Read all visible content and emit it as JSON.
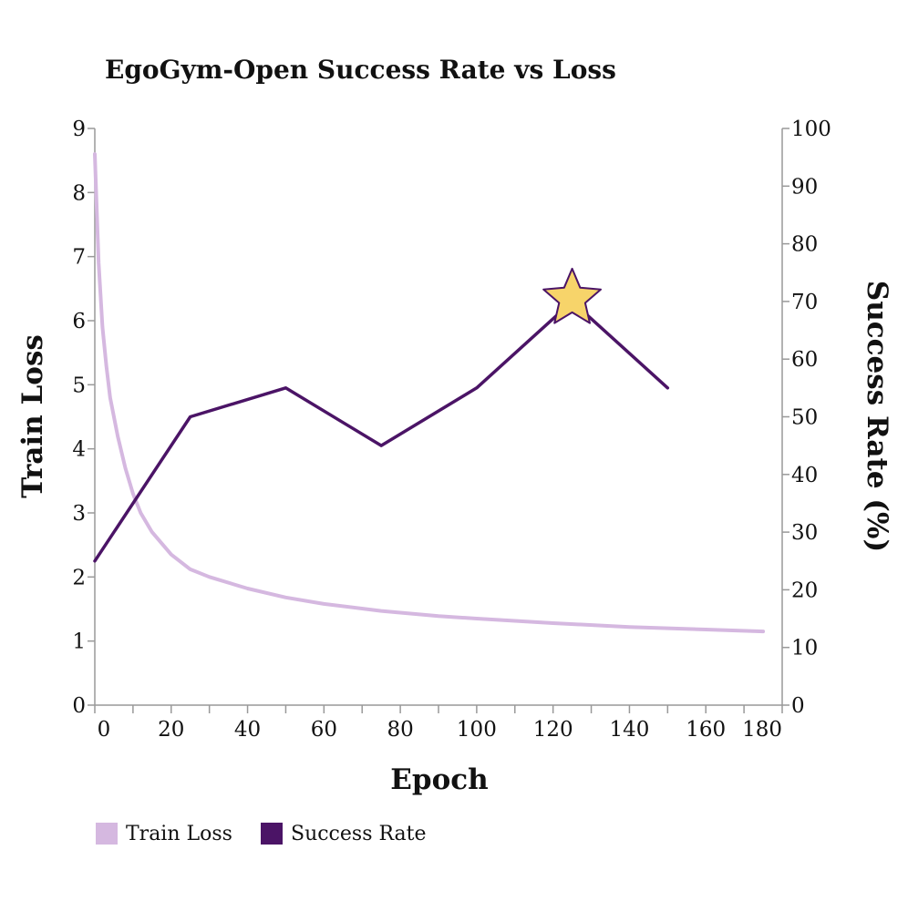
{
  "chart_data": {
    "type": "line",
    "title": "EgoGym-Open Success Rate vs Loss",
    "xlabel": "Epoch",
    "ylabel_left": "Train Loss",
    "ylabel_right": "Success Rate (%)",
    "xlim": [
      0,
      180
    ],
    "ylim_left": [
      0,
      9
    ],
    "ylim_right": [
      0,
      100
    ],
    "x_ticks": [
      0,
      20,
      40,
      60,
      80,
      100,
      120,
      140,
      160,
      180
    ],
    "y_left_ticks": [
      0,
      1,
      2,
      3,
      4,
      5,
      6,
      7,
      8,
      9
    ],
    "y_right_ticks": [
      0,
      10,
      20,
      30,
      40,
      50,
      60,
      70,
      80,
      90,
      100
    ],
    "grid": false,
    "legend_position": "bottom-left",
    "series": [
      {
        "name": "Train Loss",
        "axis": "left",
        "color": "#d5b8e0",
        "x": [
          0,
          1,
          2,
          3,
          4,
          6,
          8,
          10,
          12,
          15,
          20,
          25,
          30,
          40,
          50,
          60,
          75,
          90,
          100,
          120,
          140,
          160,
          175
        ],
        "values": [
          8.6,
          6.9,
          5.9,
          5.3,
          4.8,
          4.2,
          3.7,
          3.3,
          3.0,
          2.7,
          2.35,
          2.12,
          2.0,
          1.82,
          1.68,
          1.58,
          1.47,
          1.39,
          1.35,
          1.28,
          1.22,
          1.18,
          1.15
        ]
      },
      {
        "name": "Success Rate",
        "axis": "right",
        "color": "#4b1466",
        "x": [
          0,
          25,
          50,
          75,
          100,
          125,
          150
        ],
        "values": [
          25,
          50,
          55,
          45,
          55,
          70,
          55
        ]
      }
    ],
    "highlight": {
      "series": "Success Rate",
      "x": 125,
      "value": 70,
      "marker": "star-icon",
      "color": "#f7d46a",
      "stroke": "#4b1466"
    }
  }
}
